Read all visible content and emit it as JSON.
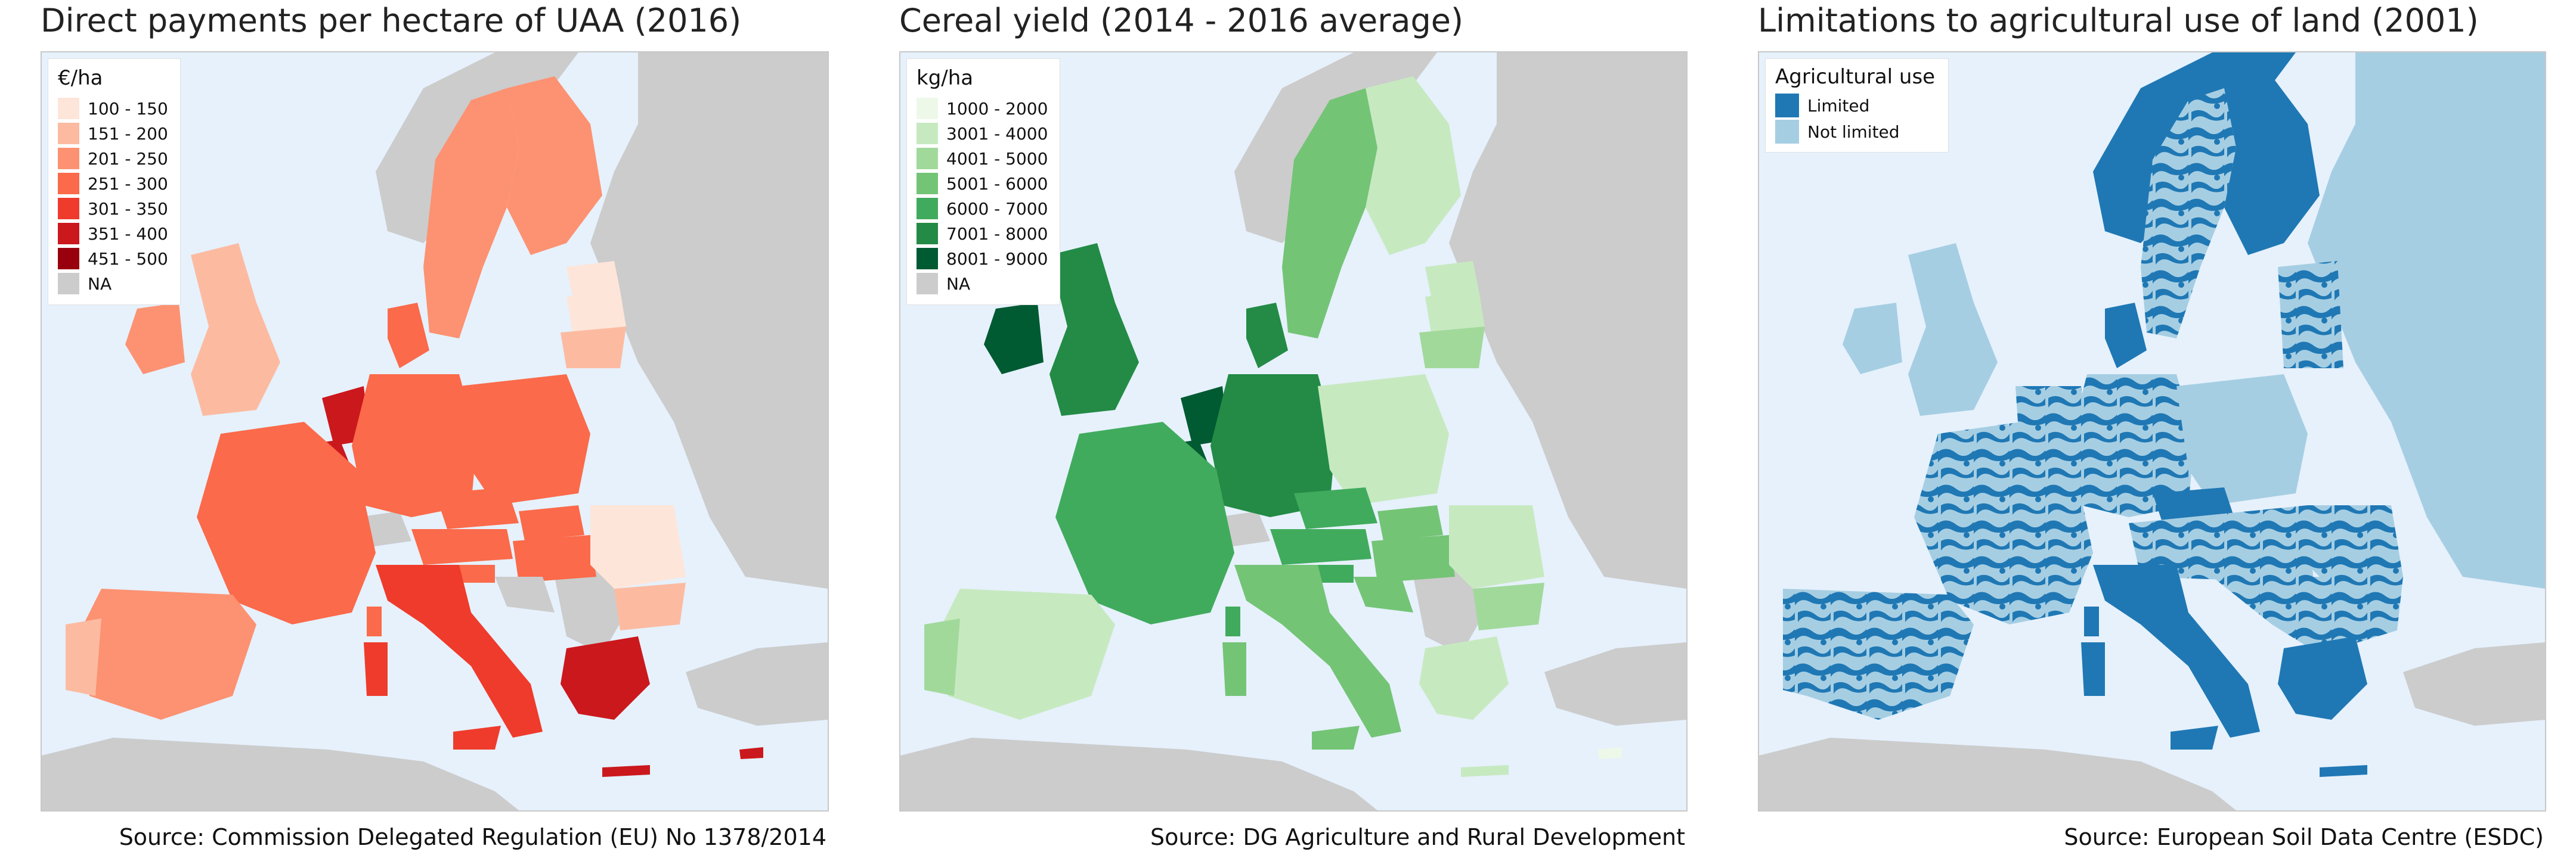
{
  "panels": [
    {
      "title": "Direct payments per hectare of UAA (2016)",
      "source": "Source: Commission Delegated Regulation (EU) No 1378/2014",
      "legend": {
        "title": "€/ha",
        "items": [
          {
            "label": "100 - 150",
            "color": "#fee5d9"
          },
          {
            "label": "151 - 200",
            "color": "#fcbba1"
          },
          {
            "label": "201 - 250",
            "color": "#fc9272"
          },
          {
            "label": "251 - 300",
            "color": "#fb6a4a"
          },
          {
            "label": "301 - 350",
            "color": "#ef3b2c"
          },
          {
            "label": "351 - 400",
            "color": "#cb181d"
          },
          {
            "label": "451 - 500",
            "color": "#99000d"
          },
          {
            "label": "NA",
            "color": "#cccccc"
          }
        ]
      }
    },
    {
      "title": "Cereal yield (2014 - 2016 average)",
      "source": "Source: DG Agriculture and Rural Development",
      "legend": {
        "title": "kg/ha",
        "items": [
          {
            "label": "1000 - 2000",
            "color": "#edf8e9"
          },
          {
            "label": "3001 - 4000",
            "color": "#c7e9c0"
          },
          {
            "label": "4001 - 5000",
            "color": "#a1d99b"
          },
          {
            "label": "5001 - 6000",
            "color": "#74c476"
          },
          {
            "label": "6000 - 7000",
            "color": "#41ab5d"
          },
          {
            "label": "7001 - 8000",
            "color": "#238b45"
          },
          {
            "label": "8001 - 9000",
            "color": "#005a32"
          },
          {
            "label": "NA",
            "color": "#cccccc"
          }
        ]
      }
    },
    {
      "title": "Limitations to agricultural use of land (2001)",
      "source": "Source: European Soil Data Centre (ESDC)",
      "legend": {
        "title": "Agricultural use",
        "items": [
          {
            "label": "Limited",
            "color": "#1f78b4"
          },
          {
            "label": "Not limited",
            "color": "#a6cee3"
          }
        ]
      }
    }
  ],
  "colors": {
    "sea": "#e6f1fc",
    "non_eu_land": "#cccccc",
    "border": "#888888"
  }
}
